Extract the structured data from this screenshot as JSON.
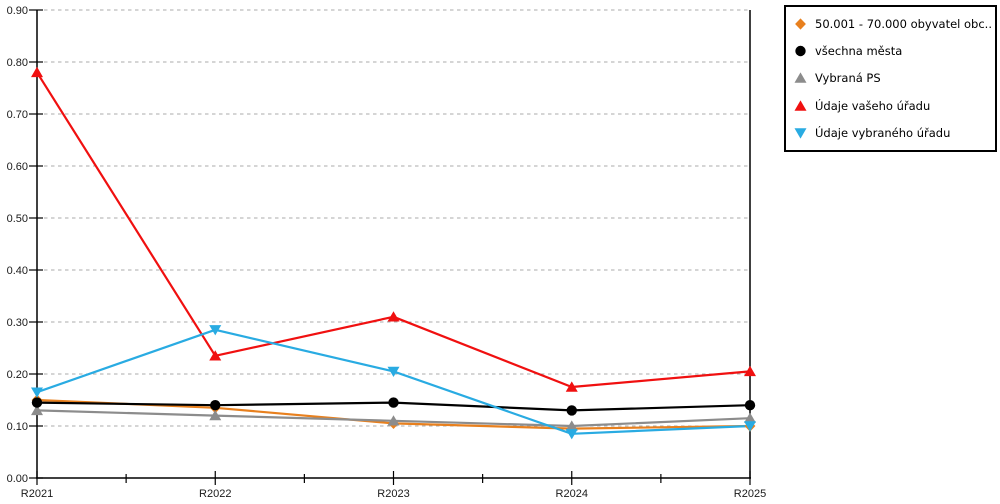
{
  "chart_data": {
    "type": "line",
    "title": "",
    "xlabel": "",
    "ylabel": "",
    "categories": [
      "R2021",
      "R2022",
      "R2023",
      "R2024",
      "R2025"
    ],
    "series": [
      {
        "name": "50.001 - 70.000 obyvatel obc...",
        "color": "#E8801E",
        "marker": "diamond",
        "values": [
          0.15,
          0.135,
          0.105,
          0.095,
          0.1
        ]
      },
      {
        "name": "všechna města",
        "color": "#000000",
        "marker": "circle",
        "values": [
          0.145,
          0.14,
          0.145,
          0.13,
          0.14
        ]
      },
      {
        "name": "Vybraná PS",
        "color": "#8C8C8C",
        "marker": "triangle-up",
        "values": [
          0.13,
          0.12,
          0.11,
          0.1,
          0.115
        ]
      },
      {
        "name": "Údaje vašeho úřadu",
        "color": "#F01010",
        "marker": "triangle-up",
        "values": [
          0.78,
          0.235,
          0.31,
          0.175,
          0.205
        ]
      },
      {
        "name": "Údaje vybraného úřadu",
        "color": "#29ABE2",
        "marker": "triangle-down",
        "values": [
          0.165,
          0.285,
          0.205,
          0.085,
          0.1
        ]
      }
    ],
    "ylim": [
      0.0,
      0.9
    ],
    "ytick_labels": [
      "0.00",
      "0.10",
      "0.20",
      "0.30",
      "0.40",
      "0.50",
      "0.60",
      "0.70",
      "0.80",
      "0.90"
    ],
    "xtick_labels": [
      "R2021",
      "R2022",
      "R2023",
      "R2024",
      "R2025"
    ],
    "grid": "horizontal-dashed",
    "legend_position": "top-right",
    "marker_draw_order": [
      0,
      2,
      3,
      4,
      1
    ],
    "line_draw_order": [
      0,
      1,
      2,
      3,
      4
    ]
  },
  "colors": {
    "background": "#FFFFFF",
    "axis": "#000000",
    "grid": "#ABABAB",
    "tick_label": "#1A1A1A",
    "legend_border": "#000000"
  }
}
